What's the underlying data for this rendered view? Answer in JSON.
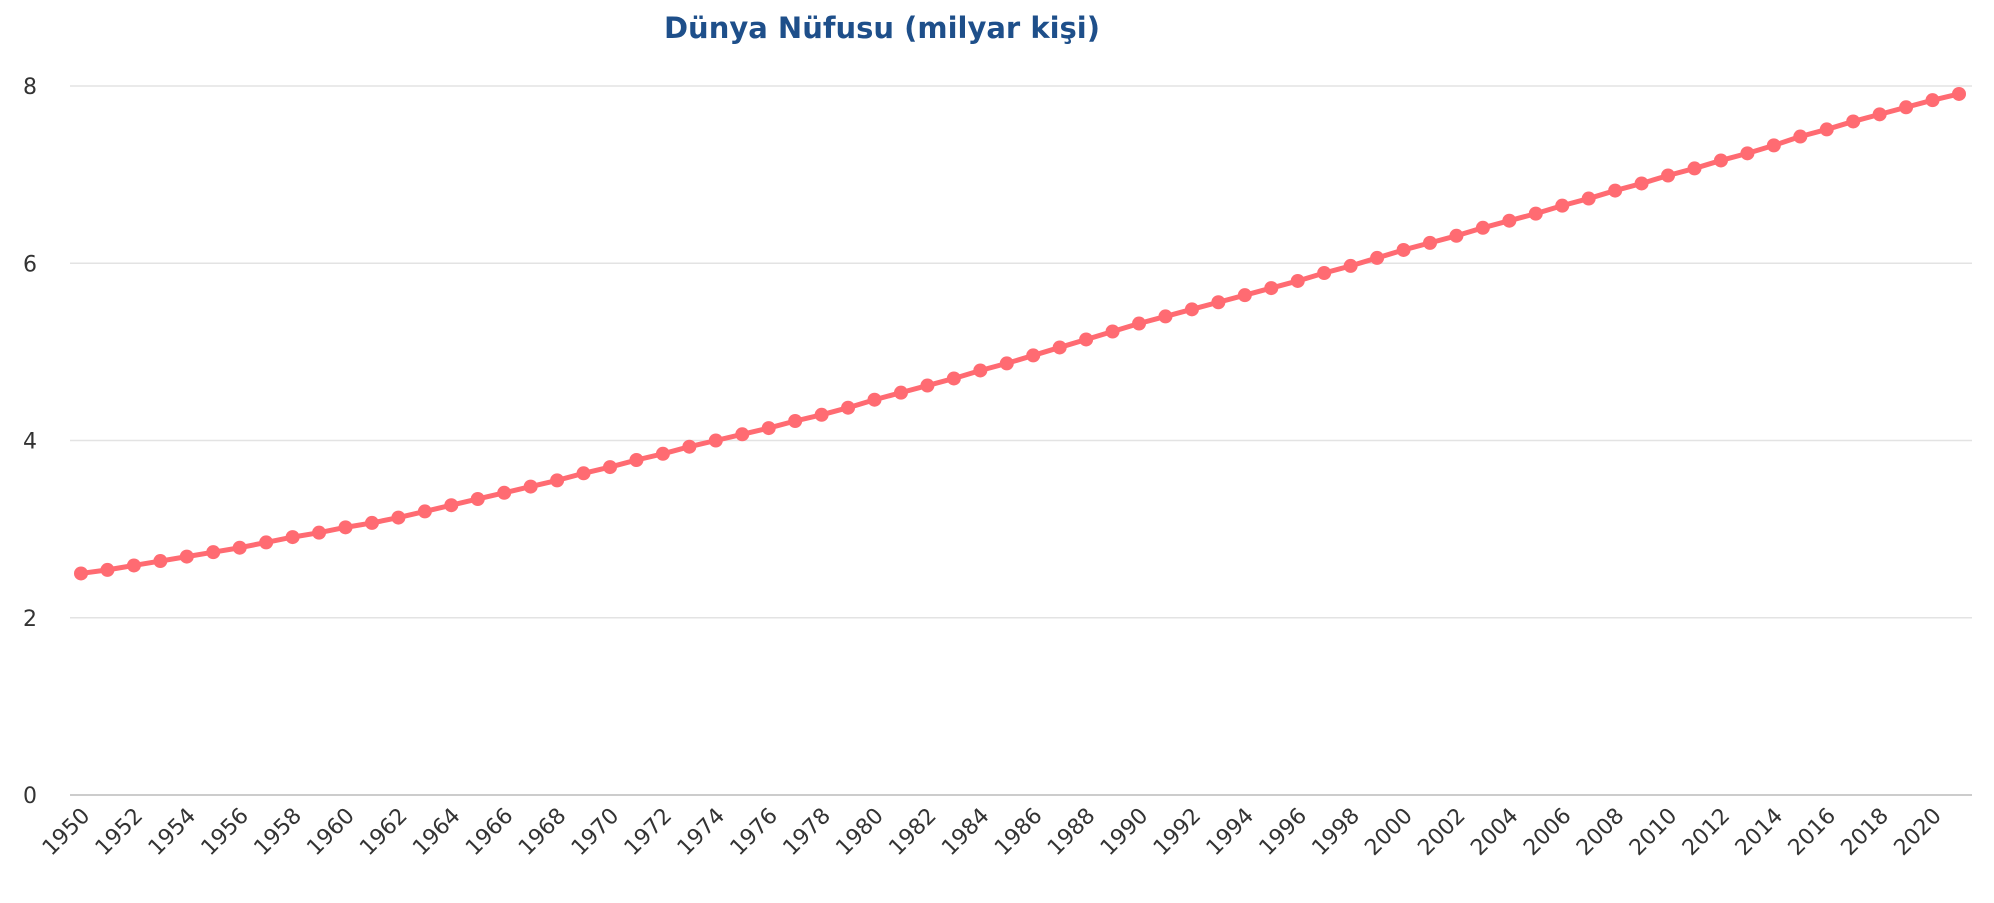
{
  "chart_data": {
    "type": "line",
    "title": "Dünya Nüfusu (milyar kişi)",
    "categories": [
      "1950",
      null,
      "1952",
      null,
      "1954",
      null,
      "1956",
      null,
      "1958",
      null,
      "1960",
      null,
      "1962",
      null,
      "1964",
      null,
      "1966",
      null,
      "1968",
      null,
      "1970",
      null,
      "1972",
      null,
      "1974",
      null,
      "1976",
      null,
      "1978",
      null,
      "1980",
      null,
      "1982",
      null,
      "1984",
      null,
      "1986",
      null,
      "1988",
      null,
      "1990",
      null,
      "1992",
      null,
      "1994",
      null,
      "1996",
      null,
      "1998",
      null,
      "2000",
      null,
      "2002",
      null,
      "2004",
      null,
      "2006",
      null,
      "2008",
      null,
      "2010",
      null,
      "2012",
      null,
      "2014",
      null,
      "2016",
      null,
      "2018",
      null,
      "2020",
      null
    ],
    "series": [
      {
        "color": "#ff6b72",
        "values": [
          2.5,
          2.54,
          2.59,
          2.64,
          2.69,
          2.74,
          2.79,
          2.85,
          2.91,
          2.96,
          3.02,
          3.07,
          3.13,
          3.2,
          3.27,
          3.34,
          3.41,
          3.48,
          3.55,
          3.63,
          3.7,
          3.78,
          3.85,
          3.93,
          4.0,
          4.07,
          4.14,
          4.22,
          4.29,
          4.37,
          4.46,
          4.54,
          4.62,
          4.7,
          4.79,
          4.87,
          4.96,
          5.05,
          5.14,
          5.23,
          5.32,
          5.4,
          5.48,
          5.56,
          5.64,
          5.72,
          5.8,
          5.89,
          5.97,
          6.06,
          6.15,
          6.23,
          6.31,
          6.4,
          6.48,
          6.56,
          6.65,
          6.73,
          6.82,
          6.9,
          6.99,
          7.07,
          7.16,
          7.24,
          7.33,
          7.43,
          7.51,
          7.6,
          7.68,
          7.76,
          7.84,
          7.91
        ]
      }
    ],
    "ylim": [
      0,
      8
    ],
    "yticks": [
      0,
      2,
      4,
      6,
      8
    ],
    "grid": true
  }
}
